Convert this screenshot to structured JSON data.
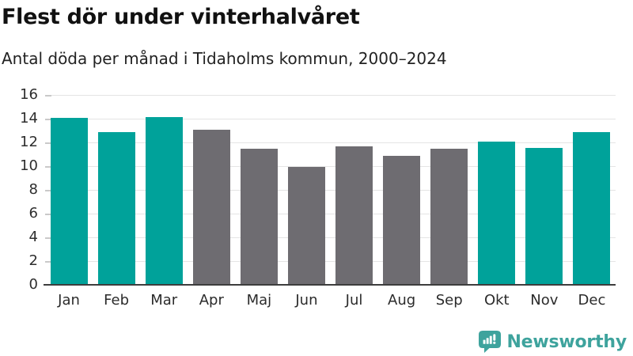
{
  "header": {
    "title": "Flest dör under vinterhalvåret",
    "subtitle": "Antal döda per månad i Tidaholms kommun, 2000–2024"
  },
  "chart_data": {
    "type": "bar",
    "title": "Flest dör under vinterhalvåret",
    "subtitle": "Antal döda per månad i Tidaholms kommun, 2000–2024",
    "categories": [
      "Jan",
      "Feb",
      "Mar",
      "Apr",
      "Maj",
      "Jun",
      "Jul",
      "Aug",
      "Sep",
      "Okt",
      "Nov",
      "Dec"
    ],
    "values": [
      14.0,
      12.8,
      14.1,
      13.0,
      11.4,
      9.9,
      11.6,
      10.8,
      11.4,
      12.0,
      11.5,
      12.8
    ],
    "bar_colors": [
      "#00a29a",
      "#00a29a",
      "#00a29a",
      "#6e6c71",
      "#6e6c71",
      "#6e6c71",
      "#6e6c71",
      "#6e6c71",
      "#6e6c71",
      "#00a29a",
      "#00a29a",
      "#00a29a"
    ],
    "xlabel": "",
    "ylabel": "",
    "ylim": [
      0,
      16
    ],
    "yticks": [
      0,
      2,
      4,
      6,
      8,
      10,
      12,
      14,
      16
    ],
    "grid": true,
    "legend_position": "none"
  },
  "branding": {
    "logo_text": "Newsworthy",
    "logo_icon": "bar-chart-speech-bubble",
    "logo_color": "#3ea39d"
  },
  "colors": {
    "winter_bar": "#00a29a",
    "summer_bar": "#6e6c71",
    "gridline": "#e4e4e4",
    "axis_line": "#3d3d3d",
    "text": "#111111"
  }
}
